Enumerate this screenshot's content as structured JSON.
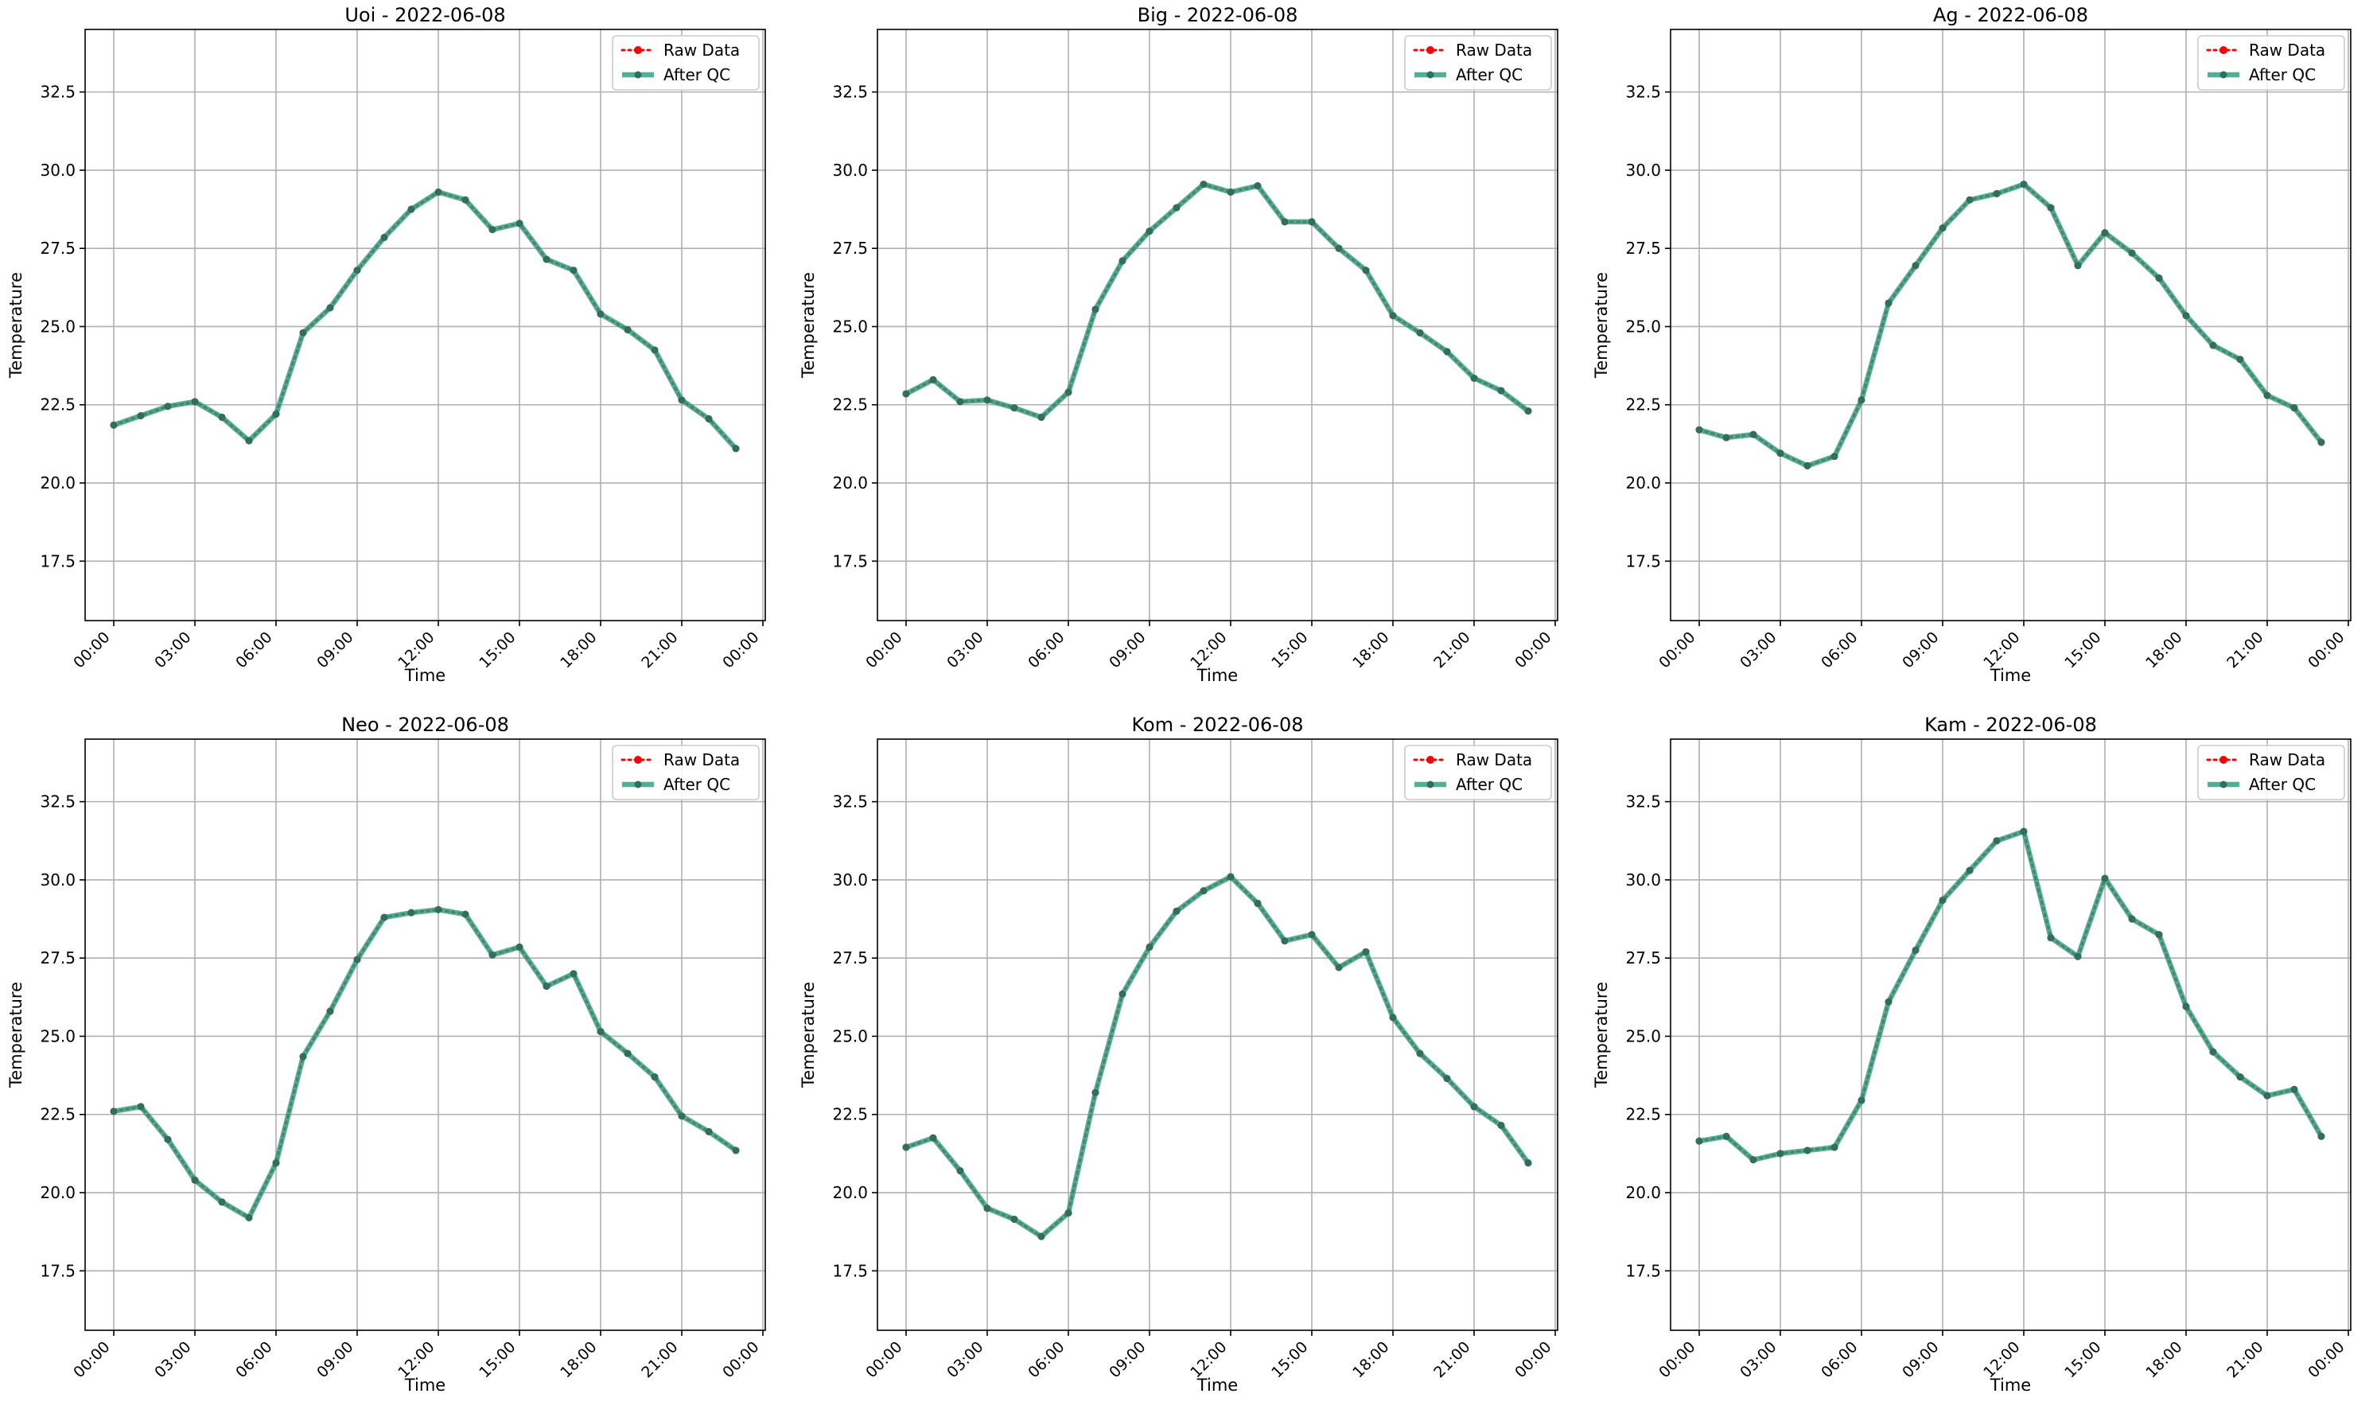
{
  "chart_data": [
    {
      "type": "line",
      "title": "Uoi - 2022-06-08",
      "xlabel": "Time",
      "ylabel": "Temperature",
      "ylim": [
        15.6,
        34.5
      ],
      "yticks": [
        "17.5",
        "20.0",
        "22.5",
        "25.0",
        "27.5",
        "30.0",
        "32.5"
      ],
      "xticks": [
        "00:00",
        "03:00",
        "06:00",
        "09:00",
        "12:00",
        "15:00",
        "18:00",
        "21:00",
        "00:00"
      ],
      "grid": true,
      "legend_position": "top-right",
      "x": [
        "00:00",
        "01:00",
        "02:00",
        "03:00",
        "04:00",
        "05:00",
        "06:00",
        "07:00",
        "08:00",
        "09:00",
        "10:00",
        "11:00",
        "12:00",
        "13:00",
        "14:00",
        "15:00",
        "16:00",
        "17:00",
        "18:00",
        "19:00",
        "20:00",
        "21:00",
        "22:00",
        "23:00"
      ],
      "series": [
        {
          "name": "Raw Data",
          "color": "#ff0000",
          "values": [
            21.85,
            22.15,
            22.45,
            22.6,
            22.1,
            21.35,
            22.2,
            24.8,
            25.6,
            26.8,
            27.85,
            28.75,
            29.3,
            29.05,
            28.1,
            28.3,
            27.15,
            26.8,
            25.4,
            24.9,
            24.25,
            22.65,
            22.05,
            21.1
          ]
        },
        {
          "name": "After QC",
          "color": "#2a9d7c",
          "values": [
            21.85,
            22.15,
            22.45,
            22.6,
            22.1,
            21.35,
            22.2,
            24.8,
            25.6,
            26.8,
            27.85,
            28.75,
            29.3,
            29.05,
            28.1,
            28.3,
            27.15,
            26.8,
            25.4,
            24.9,
            24.25,
            22.65,
            22.05,
            21.1
          ]
        }
      ]
    },
    {
      "type": "line",
      "title": "Big - 2022-06-08",
      "xlabel": "Time",
      "ylabel": "Temperature",
      "ylim": [
        15.6,
        34.5
      ],
      "yticks": [
        "17.5",
        "20.0",
        "22.5",
        "25.0",
        "27.5",
        "30.0",
        "32.5"
      ],
      "xticks": [
        "00:00",
        "03:00",
        "06:00",
        "09:00",
        "12:00",
        "15:00",
        "18:00",
        "21:00",
        "00:00"
      ],
      "grid": true,
      "legend_position": "top-right",
      "x": [
        "00:00",
        "01:00",
        "02:00",
        "03:00",
        "04:00",
        "05:00",
        "06:00",
        "07:00",
        "08:00",
        "09:00",
        "10:00",
        "11:00",
        "12:00",
        "13:00",
        "14:00",
        "15:00",
        "16:00",
        "17:00",
        "18:00",
        "19:00",
        "20:00",
        "21:00",
        "22:00",
        "23:00"
      ],
      "series": [
        {
          "name": "Raw Data",
          "color": "#ff0000",
          "values": [
            22.85,
            23.3,
            22.6,
            22.65,
            22.4,
            22.1,
            22.9,
            25.55,
            27.1,
            28.05,
            28.8,
            29.55,
            29.3,
            29.5,
            28.35,
            28.35,
            27.5,
            26.8,
            25.35,
            24.8,
            24.2,
            23.35,
            22.95,
            22.3
          ]
        },
        {
          "name": "After QC",
          "color": "#2a9d7c",
          "values": [
            22.85,
            23.3,
            22.6,
            22.65,
            22.4,
            22.1,
            22.9,
            25.55,
            27.1,
            28.05,
            28.8,
            29.55,
            29.3,
            29.5,
            28.35,
            28.35,
            27.5,
            26.8,
            25.35,
            24.8,
            24.2,
            23.35,
            22.95,
            22.3
          ]
        }
      ]
    },
    {
      "type": "line",
      "title": "Ag - 2022-06-08",
      "xlabel": "Time",
      "ylabel": "Temperature",
      "ylim": [
        15.6,
        34.5
      ],
      "yticks": [
        "17.5",
        "20.0",
        "22.5",
        "25.0",
        "27.5",
        "30.0",
        "32.5"
      ],
      "xticks": [
        "00:00",
        "03:00",
        "06:00",
        "09:00",
        "12:00",
        "15:00",
        "18:00",
        "21:00",
        "00:00"
      ],
      "grid": true,
      "legend_position": "top-right",
      "x": [
        "00:00",
        "01:00",
        "02:00",
        "03:00",
        "04:00",
        "05:00",
        "06:00",
        "07:00",
        "08:00",
        "09:00",
        "10:00",
        "11:00",
        "12:00",
        "13:00",
        "14:00",
        "15:00",
        "16:00",
        "17:00",
        "18:00",
        "19:00",
        "20:00",
        "21:00",
        "22:00",
        "23:00"
      ],
      "series": [
        {
          "name": "Raw Data",
          "color": "#ff0000",
          "values": [
            21.7,
            21.45,
            21.55,
            20.95,
            20.55,
            20.85,
            22.65,
            25.75,
            26.95,
            28.15,
            29.05,
            29.25,
            29.55,
            28.8,
            26.95,
            28.0,
            27.35,
            26.55,
            25.35,
            24.4,
            23.95,
            22.8,
            22.4,
            21.3
          ]
        },
        {
          "name": "After QC",
          "color": "#2a9d7c",
          "values": [
            21.7,
            21.45,
            21.55,
            20.95,
            20.55,
            20.85,
            22.65,
            25.75,
            26.95,
            28.15,
            29.05,
            29.25,
            29.55,
            28.8,
            26.95,
            28.0,
            27.35,
            26.55,
            25.35,
            24.4,
            23.95,
            22.8,
            22.4,
            21.3
          ]
        }
      ]
    },
    {
      "type": "line",
      "title": "Neo - 2022-06-08",
      "xlabel": "Time",
      "ylabel": "Temperature",
      "ylim": [
        15.6,
        34.5
      ],
      "yticks": [
        "17.5",
        "20.0",
        "22.5",
        "25.0",
        "27.5",
        "30.0",
        "32.5"
      ],
      "xticks": [
        "00:00",
        "03:00",
        "06:00",
        "09:00",
        "12:00",
        "15:00",
        "18:00",
        "21:00",
        "00:00"
      ],
      "grid": true,
      "legend_position": "top-right",
      "x": [
        "00:00",
        "01:00",
        "02:00",
        "03:00",
        "04:00",
        "05:00",
        "06:00",
        "07:00",
        "08:00",
        "09:00",
        "10:00",
        "11:00",
        "12:00",
        "13:00",
        "14:00",
        "15:00",
        "16:00",
        "17:00",
        "18:00",
        "19:00",
        "20:00",
        "21:00",
        "22:00",
        "23:00"
      ],
      "series": [
        {
          "name": "Raw Data",
          "color": "#ff0000",
          "values": [
            22.6,
            22.75,
            21.7,
            20.4,
            19.7,
            19.2,
            20.95,
            24.35,
            25.8,
            27.45,
            28.8,
            28.95,
            29.05,
            28.9,
            27.6,
            27.85,
            26.6,
            27.0,
            25.15,
            24.45,
            23.7,
            22.45,
            21.95,
            21.35
          ]
        },
        {
          "name": "After QC",
          "color": "#2a9d7c",
          "values": [
            22.6,
            22.75,
            21.7,
            20.4,
            19.7,
            19.2,
            20.95,
            24.35,
            25.8,
            27.45,
            28.8,
            28.95,
            29.05,
            28.9,
            27.6,
            27.85,
            26.6,
            27.0,
            25.15,
            24.45,
            23.7,
            22.45,
            21.95,
            21.35
          ]
        }
      ]
    },
    {
      "type": "line",
      "title": "Kom - 2022-06-08",
      "xlabel": "Time",
      "ylabel": "Temperature",
      "ylim": [
        15.6,
        34.5
      ],
      "yticks": [
        "17.5",
        "20.0",
        "22.5",
        "25.0",
        "27.5",
        "30.0",
        "32.5"
      ],
      "xticks": [
        "00:00",
        "03:00",
        "06:00",
        "09:00",
        "12:00",
        "15:00",
        "18:00",
        "21:00",
        "00:00"
      ],
      "grid": true,
      "legend_position": "top-right",
      "x": [
        "00:00",
        "01:00",
        "02:00",
        "03:00",
        "04:00",
        "05:00",
        "06:00",
        "07:00",
        "08:00",
        "09:00",
        "10:00",
        "11:00",
        "12:00",
        "13:00",
        "14:00",
        "15:00",
        "16:00",
        "17:00",
        "18:00",
        "19:00",
        "20:00",
        "21:00",
        "22:00",
        "23:00"
      ],
      "series": [
        {
          "name": "Raw Data",
          "color": "#ff0000",
          "values": [
            21.45,
            21.75,
            20.7,
            19.5,
            19.15,
            18.6,
            19.35,
            23.2,
            26.35,
            27.85,
            29.0,
            29.65,
            30.1,
            29.25,
            28.05,
            28.25,
            27.2,
            27.7,
            25.6,
            24.45,
            23.65,
            22.75,
            22.15,
            20.95
          ]
        },
        {
          "name": "After QC",
          "color": "#2a9d7c",
          "values": [
            21.45,
            21.75,
            20.7,
            19.5,
            19.15,
            18.6,
            19.35,
            23.2,
            26.35,
            27.85,
            29.0,
            29.65,
            30.1,
            29.25,
            28.05,
            28.25,
            27.2,
            27.7,
            25.6,
            24.45,
            23.65,
            22.75,
            22.15,
            20.95
          ]
        }
      ]
    },
    {
      "type": "line",
      "title": "Kam - 2022-06-08",
      "xlabel": "Time",
      "ylabel": "Temperature",
      "ylim": [
        15.6,
        34.5
      ],
      "yticks": [
        "17.5",
        "20.0",
        "22.5",
        "25.0",
        "27.5",
        "30.0",
        "32.5"
      ],
      "xticks": [
        "00:00",
        "03:00",
        "06:00",
        "09:00",
        "12:00",
        "15:00",
        "18:00",
        "21:00",
        "00:00"
      ],
      "grid": true,
      "legend_position": "top-right",
      "x": [
        "00:00",
        "01:00",
        "02:00",
        "03:00",
        "04:00",
        "05:00",
        "06:00",
        "07:00",
        "08:00",
        "09:00",
        "10:00",
        "11:00",
        "12:00",
        "13:00",
        "14:00",
        "15:00",
        "16:00",
        "17:00",
        "18:00",
        "19:00",
        "20:00",
        "21:00",
        "22:00",
        "23:00"
      ],
      "series": [
        {
          "name": "Raw Data",
          "color": "#ff0000",
          "values": [
            21.65,
            21.8,
            21.05,
            21.25,
            21.35,
            21.45,
            22.95,
            26.1,
            27.75,
            29.35,
            30.3,
            31.25,
            31.55,
            28.15,
            27.55,
            30.05,
            28.75,
            28.25,
            25.95,
            24.5,
            23.7,
            23.1,
            23.3,
            21.8
          ]
        },
        {
          "name": "After QC",
          "color": "#2a9d7c",
          "values": [
            21.65,
            21.8,
            21.05,
            21.25,
            21.35,
            21.45,
            22.95,
            26.1,
            27.75,
            29.35,
            30.3,
            31.25,
            31.55,
            28.15,
            27.55,
            30.05,
            28.75,
            28.25,
            25.95,
            24.5,
            23.7,
            23.1,
            23.3,
            21.8
          ]
        }
      ]
    }
  ]
}
